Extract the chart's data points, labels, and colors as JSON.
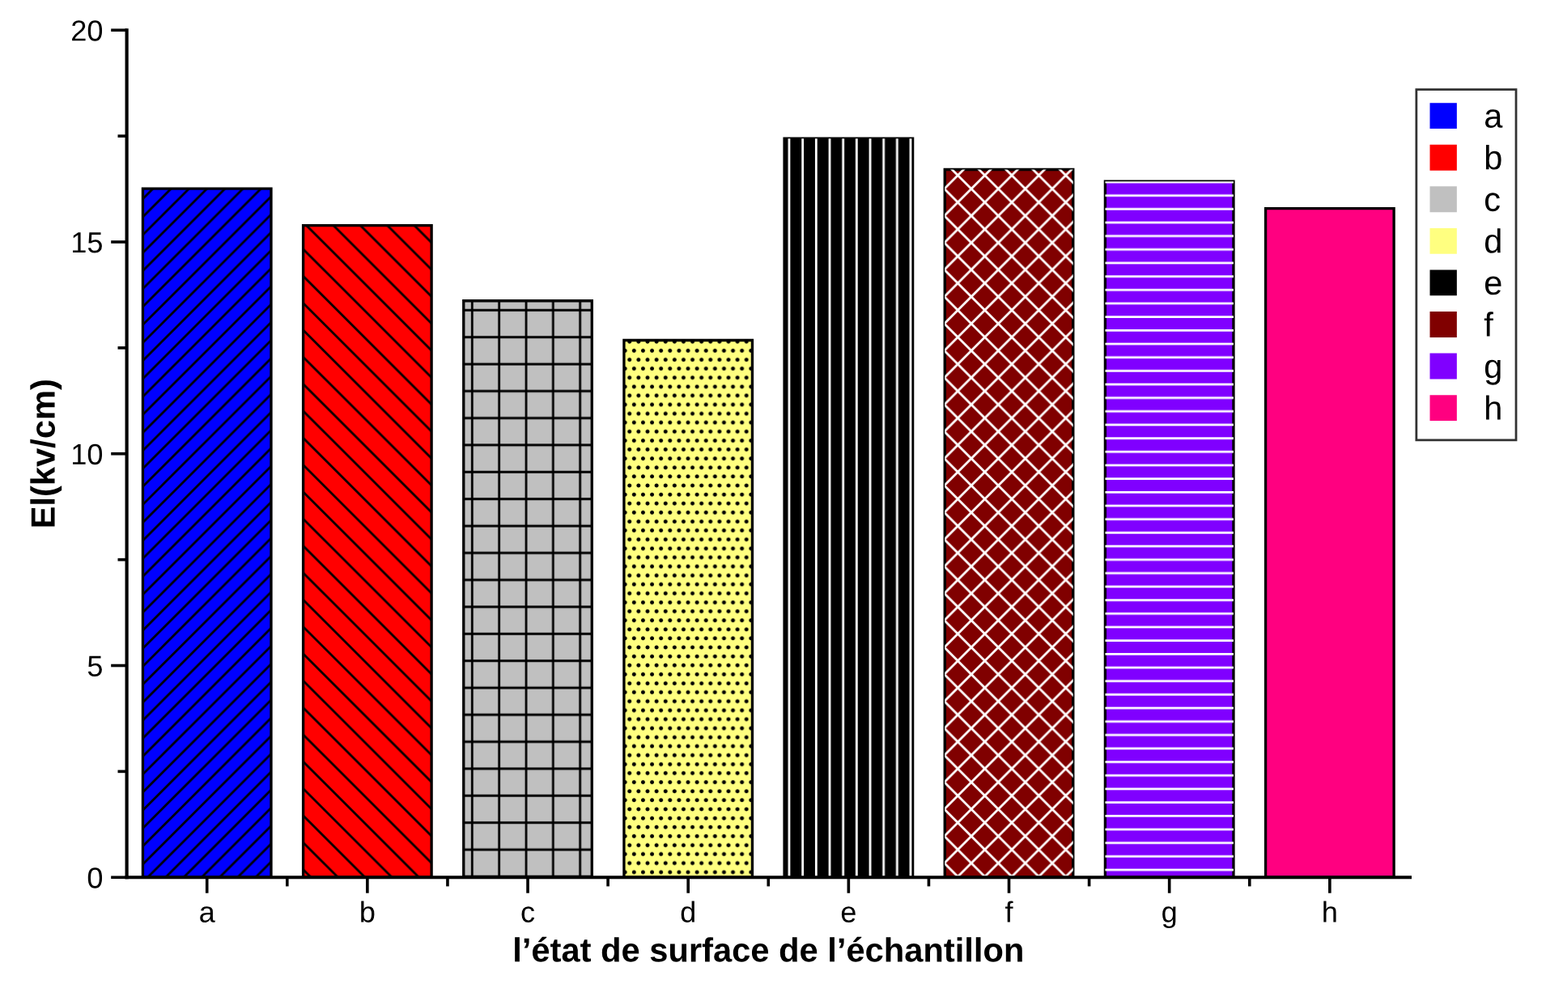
{
  "chart_data": {
    "type": "bar",
    "xlabel": "l’état de surface de l’échantillon",
    "ylabel": "El(kv/cm)",
    "categories": [
      "a",
      "b",
      "c",
      "d",
      "e",
      "f",
      "g",
      "h"
    ],
    "series": [
      {
        "name": "a",
        "color": "#0000ff",
        "values": [
          16.26,
          null,
          null,
          null,
          null,
          null,
          null,
          null
        ]
      },
      {
        "name": "b",
        "color": "#ff0000",
        "values": [
          null,
          15.39,
          null,
          null,
          null,
          null,
          null,
          null
        ]
      },
      {
        "name": "c",
        "color": "#c0c0c0",
        "values": [
          null,
          null,
          13.61,
          null,
          null,
          null,
          null,
          null
        ]
      },
      {
        "name": "d",
        "color": "#ffff80",
        "values": [
          null,
          null,
          null,
          12.68,
          null,
          null,
          null,
          null
        ]
      },
      {
        "name": "e",
        "color": "#000000",
        "values": [
          null,
          null,
          null,
          null,
          17.44,
          null,
          null,
          null
        ]
      },
      {
        "name": "f",
        "color": "#800000",
        "values": [
          null,
          null,
          null,
          null,
          null,
          16.71,
          null,
          null
        ]
      },
      {
        "name": "g",
        "color": "#8000ff",
        "values": [
          null,
          null,
          null,
          null,
          null,
          null,
          16.43,
          null
        ]
      },
      {
        "name": "h",
        "color": "#ff0080",
        "values": [
          null,
          null,
          null,
          null,
          null,
          null,
          null,
          15.79
        ]
      }
    ],
    "ylim": [
      0,
      20
    ],
    "yticks": [
      0,
      5,
      10,
      15,
      20
    ],
    "grid": false,
    "legend": "top right"
  }
}
